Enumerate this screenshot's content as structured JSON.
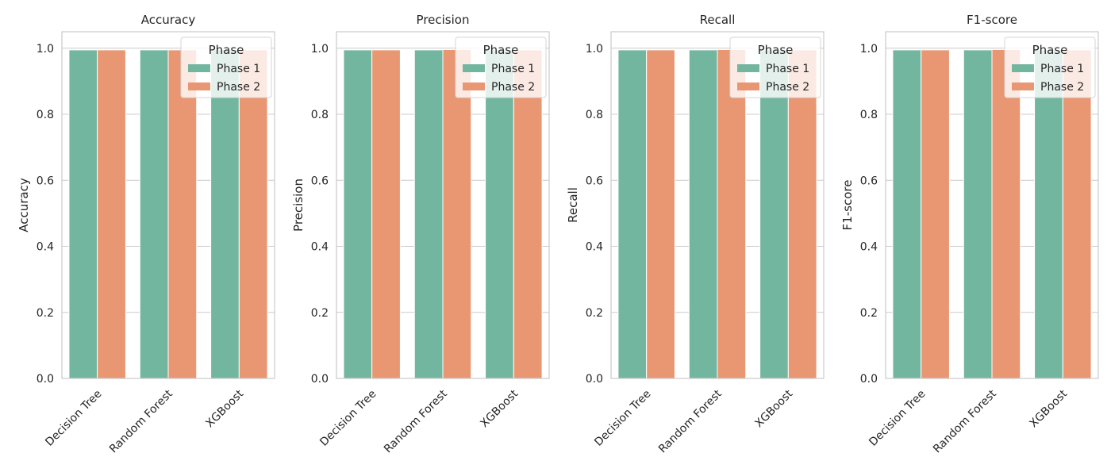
{
  "legend_title": "Phase",
  "colors": {
    "phase1": "#73b6a0",
    "phase2": "#e99673",
    "grid": "#cccccc",
    "spine": "#cccccc"
  },
  "chart_data": [
    {
      "type": "bar",
      "title": "Accuracy",
      "ylabel": "Accuracy",
      "xlabel": "",
      "categories": [
        "Decision Tree",
        "Random Forest",
        "XGBoost"
      ],
      "series": [
        {
          "name": "Phase 1",
          "values": [
            0.995,
            0.995,
            0.995
          ]
        },
        {
          "name": "Phase 2",
          "values": [
            0.995,
            0.995,
            0.995
          ]
        }
      ],
      "ylim": [
        0,
        1.05
      ],
      "yticks": [
        "0.0",
        "0.2",
        "0.4",
        "0.6",
        "0.8",
        "1.0"
      ],
      "grid": "y",
      "legend": "top-right"
    },
    {
      "type": "bar",
      "title": "Precision",
      "ylabel": "Precision",
      "xlabel": "",
      "categories": [
        "Decision Tree",
        "Random Forest",
        "XGBoost"
      ],
      "series": [
        {
          "name": "Phase 1",
          "values": [
            0.995,
            0.995,
            0.995
          ]
        },
        {
          "name": "Phase 2",
          "values": [
            0.995,
            0.996,
            0.995
          ]
        }
      ],
      "ylim": [
        0,
        1.05
      ],
      "yticks": [
        "0.0",
        "0.2",
        "0.4",
        "0.6",
        "0.8",
        "1.0"
      ],
      "grid": "y",
      "legend": "top-right"
    },
    {
      "type": "bar",
      "title": "Recall",
      "ylabel": "Recall",
      "xlabel": "",
      "categories": [
        "Decision Tree",
        "Random Forest",
        "XGBoost"
      ],
      "series": [
        {
          "name": "Phase 1",
          "values": [
            0.995,
            0.995,
            0.995
          ]
        },
        {
          "name": "Phase 2",
          "values": [
            0.995,
            0.996,
            0.995
          ]
        }
      ],
      "ylim": [
        0,
        1.05
      ],
      "yticks": [
        "0.0",
        "0.2",
        "0.4",
        "0.6",
        "0.8",
        "1.0"
      ],
      "grid": "y",
      "legend": "top-right"
    },
    {
      "type": "bar",
      "title": "F1-score",
      "ylabel": "F1-score",
      "xlabel": "",
      "categories": [
        "Decision Tree",
        "Random Forest",
        "XGBoost"
      ],
      "series": [
        {
          "name": "Phase 1",
          "values": [
            0.995,
            0.995,
            0.995
          ]
        },
        {
          "name": "Phase 2",
          "values": [
            0.995,
            0.996,
            0.995
          ]
        }
      ],
      "ylim": [
        0,
        1.05
      ],
      "yticks": [
        "0.0",
        "0.2",
        "0.4",
        "0.6",
        "0.8",
        "1.0"
      ],
      "grid": "y",
      "legend": "top-right"
    }
  ]
}
